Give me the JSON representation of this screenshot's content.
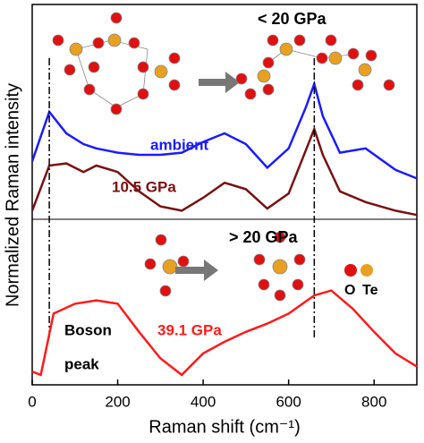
{
  "chart_data": [
    {
      "type": "line",
      "title": "< 20 GPa",
      "ylabel": "Normalized Raman intensity",
      "xlim": [
        0,
        900
      ],
      "ylim": [
        0,
        1
      ],
      "vlines": [
        40,
        660
      ],
      "x": [
        0,
        40,
        80,
        120,
        150,
        200,
        250,
        300,
        350,
        400,
        450,
        500,
        550,
        600,
        640,
        660,
        680,
        720,
        780,
        850,
        900
      ],
      "series": [
        {
          "name": "ambient",
          "color": "#1a1aff",
          "values": [
            0.27,
            0.5,
            0.4,
            0.35,
            0.33,
            0.31,
            0.3,
            0.3,
            0.31,
            0.36,
            0.4,
            0.35,
            0.24,
            0.33,
            0.52,
            0.63,
            0.48,
            0.31,
            0.33,
            0.23,
            0.19
          ]
        },
        {
          "name": "10.5 GPa",
          "color": "#7a1010",
          "values": [
            0.04,
            0.25,
            0.26,
            0.22,
            0.25,
            0.22,
            0.13,
            0.06,
            0.04,
            0.1,
            0.17,
            0.14,
            0.05,
            0.12,
            0.32,
            0.42,
            0.3,
            0.13,
            0.08,
            0.04,
            0.02
          ]
        }
      ]
    },
    {
      "type": "line",
      "title": "> 20 GPa",
      "xlabel": "Raman shift (cm⁻¹)",
      "xlim": [
        0,
        900
      ],
      "ylim": [
        0,
        1
      ],
      "xticks": [
        0,
        200,
        400,
        600,
        800
      ],
      "annotations": [
        "Boson",
        "peak",
        "O",
        "Te"
      ],
      "x": [
        0,
        20,
        50,
        100,
        150,
        200,
        250,
        300,
        350,
        400,
        450,
        500,
        550,
        600,
        660,
        700,
        750,
        800,
        850,
        900
      ],
      "series": [
        {
          "name": "39.1 GPa",
          "color": "#ff1a1a",
          "values": [
            0.08,
            0.06,
            0.43,
            0.49,
            0.51,
            0.49,
            0.32,
            0.16,
            0.06,
            0.19,
            0.26,
            0.32,
            0.37,
            0.43,
            0.54,
            0.57,
            0.46,
            0.32,
            0.19,
            0.11
          ]
        }
      ]
    }
  ]
}
